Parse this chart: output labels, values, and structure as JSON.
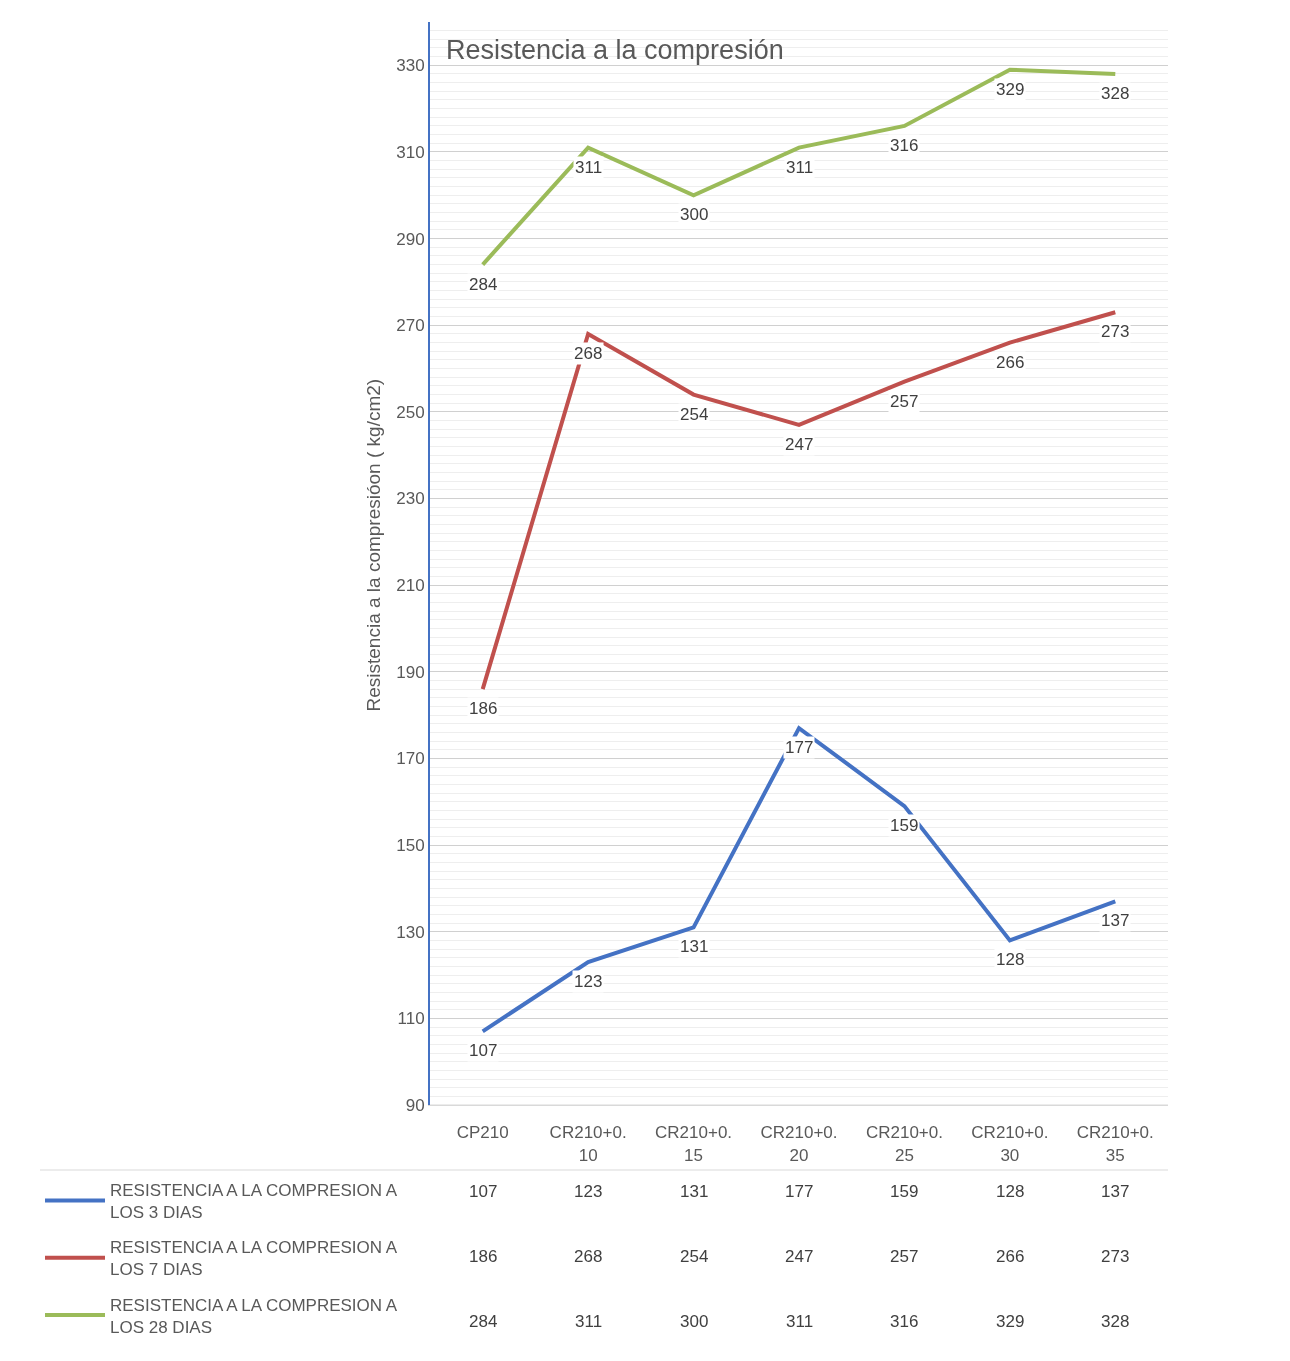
{
  "chart_data": {
    "type": "line",
    "title": "Resistencia a la compresión",
    "ylabel": "Resistencia a la compresióon ( kg/cm2)",
    "categories": [
      "CP210",
      "CR210+0.10",
      "CR210+0.15",
      "CR210+0.20",
      "CR210+0.25",
      "CR210+0.30",
      "CR210+0.35"
    ],
    "series": [
      {
        "name": "RESISTENCIA A LA COMPRESION A LOS 3 DIAS",
        "color": "#4472c4",
        "values": [
          107,
          123,
          131,
          177,
          159,
          128,
          137
        ],
        "value_labels": [
          "107",
          "123",
          "131",
          "177",
          "159",
          "128",
          "137"
        ]
      },
      {
        "name": "RESISTENCIA A LA COMPRESION A LOS 7 DIAS",
        "color": "#c0504d",
        "values": [
          186,
          268,
          254,
          247,
          257,
          266,
          273
        ],
        "value_labels": [
          "186",
          "268",
          "254",
          "247",
          "257",
          "266",
          "273"
        ]
      },
      {
        "name": "RESISTENCIA A LA COMPRESION A LOS 28 DIAS",
        "color": "#9bbb59",
        "values": [
          284,
          311,
          300,
          311,
          316,
          329,
          328
        ],
        "value_labels": [
          "284",
          "311",
          "300",
          "311",
          "316",
          "329",
          "328"
        ]
      }
    ],
    "ylim": [
      90,
      340
    ],
    "yticks": [
      90,
      110,
      130,
      150,
      170,
      190,
      210,
      230,
      250,
      270,
      290,
      310,
      330
    ],
    "grid": "y",
    "legend": "bottom left",
    "data_labels": true,
    "marker": "none",
    "line_style": "solid"
  }
}
